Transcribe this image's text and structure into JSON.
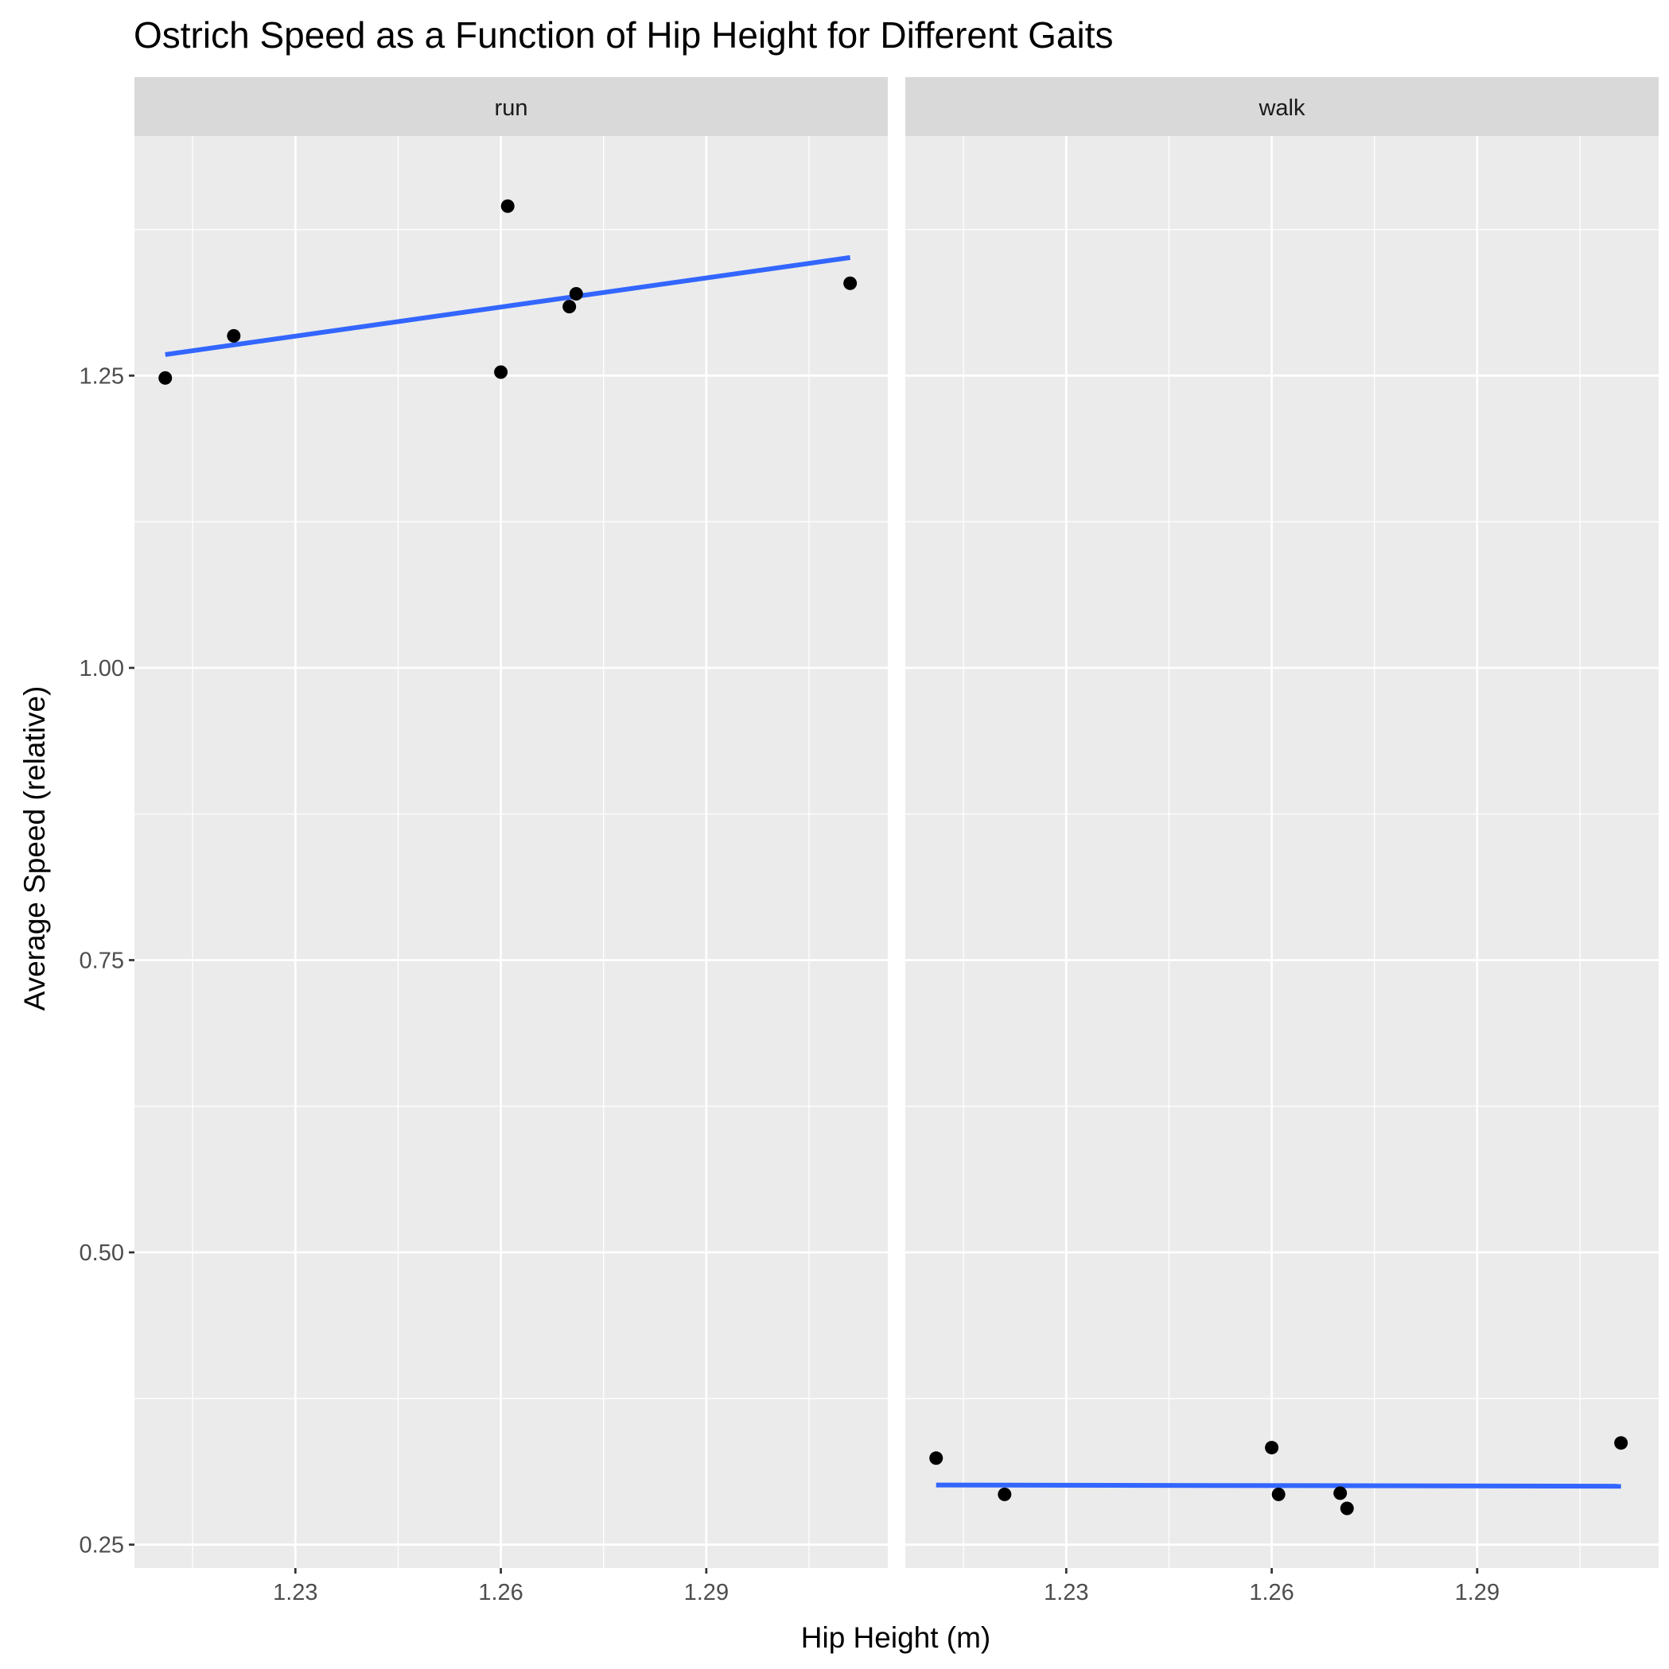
{
  "chart_data": {
    "type": "scatter",
    "title": "Ostrich Speed as a Function of Hip Height for Different Gaits",
    "xlabel": "Hip Height (m)",
    "ylabel": "Average Speed (relative)",
    "xlim": [
      1.2065,
      1.3165
    ],
    "ylim": [
      0.23,
      1.455
    ],
    "x_ticks": [
      "1.23",
      "1.26",
      "1.29"
    ],
    "x_tick_values": [
      1.23,
      1.26,
      1.29
    ],
    "y_ticks": [
      "0.25",
      "0.50",
      "0.75",
      "1.00",
      "1.25"
    ],
    "y_tick_values": [
      0.25,
      0.5,
      0.75,
      1.0,
      1.25
    ],
    "grid": true,
    "colors": {
      "panel_bg": "#ebebeb",
      "strip_bg": "#d9d9d9",
      "grid": "#ffffff",
      "points": "#000000",
      "trend": "#3366ff"
    },
    "panels": [
      {
        "label": "run",
        "points": [
          {
            "x": 1.211,
            "y": 1.248
          },
          {
            "x": 1.221,
            "y": 1.284
          },
          {
            "x": 1.26,
            "y": 1.253
          },
          {
            "x": 1.261,
            "y": 1.395
          },
          {
            "x": 1.27,
            "y": 1.309
          },
          {
            "x": 1.271,
            "y": 1.32
          },
          {
            "x": 1.311,
            "y": 1.329
          }
        ],
        "trend": {
          "x": [
            1.211,
            1.311
          ],
          "y": [
            1.268,
            1.351
          ]
        }
      },
      {
        "label": "walk",
        "points": [
          {
            "x": 1.211,
            "y": 0.324
          },
          {
            "x": 1.221,
            "y": 0.293
          },
          {
            "x": 1.26,
            "y": 0.333
          },
          {
            "x": 1.261,
            "y": 0.293
          },
          {
            "x": 1.27,
            "y": 0.294
          },
          {
            "x": 1.271,
            "y": 0.281
          },
          {
            "x": 1.311,
            "y": 0.337
          }
        ],
        "trend": {
          "x": [
            1.211,
            1.311
          ],
          "y": [
            0.301,
            0.3
          ]
        }
      }
    ]
  }
}
